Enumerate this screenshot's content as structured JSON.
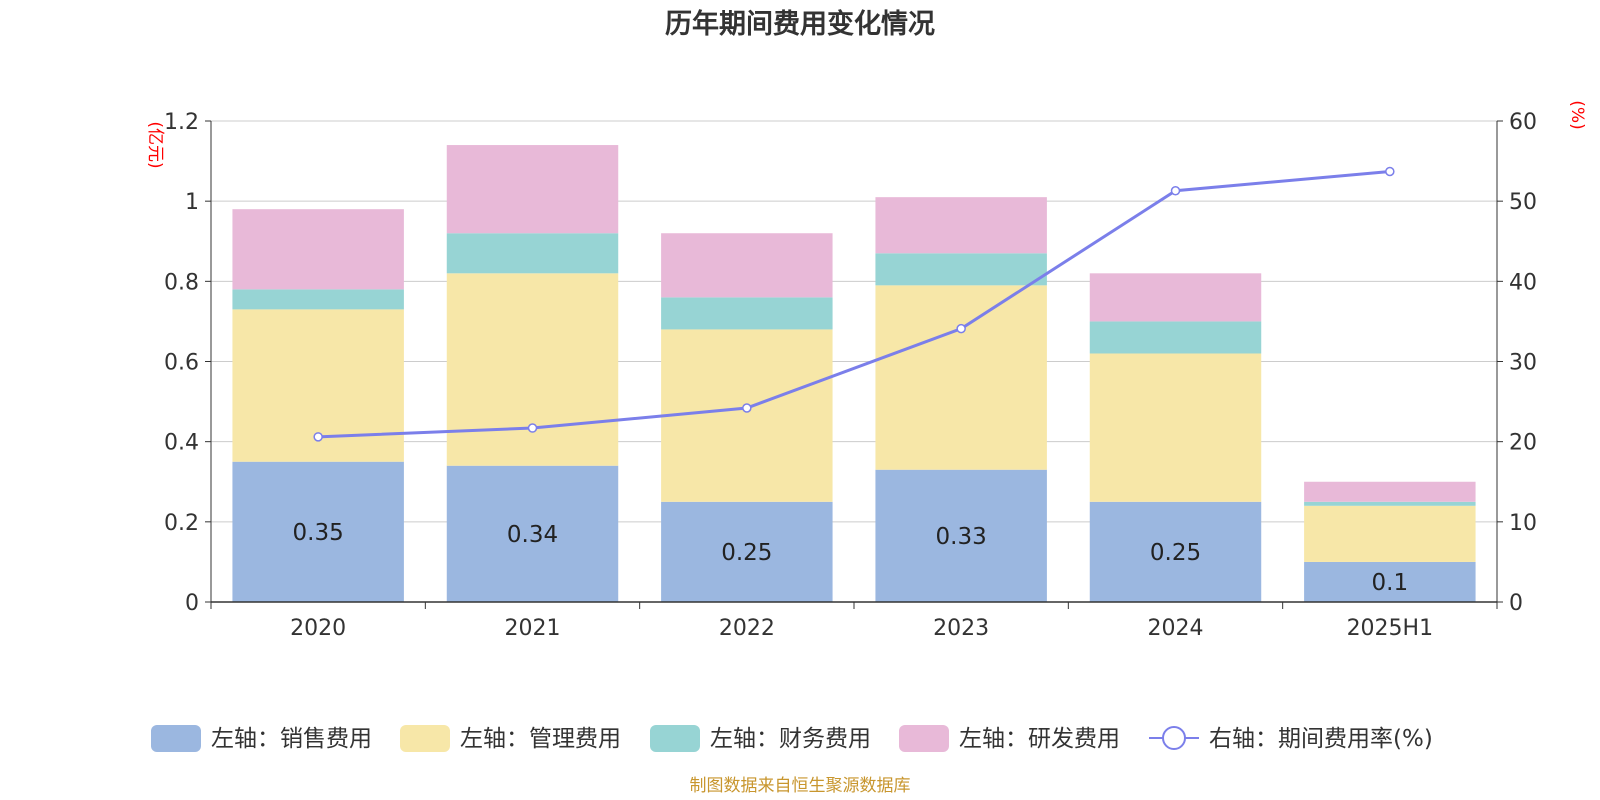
{
  "chart_data": {
    "type": "bar",
    "stacked": true,
    "title": "历年期间费用变化情况",
    "categories": [
      "2020",
      "2021",
      "2022",
      "2023",
      "2024",
      "2025H1"
    ],
    "left_axis": {
      "unit": "(亿元)",
      "ylim": [
        0,
        1.2
      ],
      "ticks": [
        "0",
        "0.2",
        "0.4",
        "0.6",
        "0.8",
        "1",
        "1.2"
      ]
    },
    "right_axis": {
      "unit": "(%)",
      "ylim": [
        0,
        60
      ],
      "ticks": [
        "0",
        "10",
        "20",
        "30",
        "40",
        "50",
        "60"
      ]
    },
    "series": [
      {
        "name": "左轴：销售费用",
        "axis": "left",
        "type": "bar",
        "color": "#9bb7e0",
        "values": [
          0.35,
          0.34,
          0.25,
          0.33,
          0.25,
          0.1
        ],
        "labels": [
          "0.35",
          "0.34",
          "0.25",
          "0.33",
          "0.25",
          "0.1"
        ]
      },
      {
        "name": "左轴：管理费用",
        "axis": "left",
        "type": "bar",
        "color": "#f7e7a8",
        "values": [
          0.38,
          0.48,
          0.43,
          0.46,
          0.37,
          0.14
        ]
      },
      {
        "name": "左轴：财务费用",
        "axis": "left",
        "type": "bar",
        "color": "#97d4d4",
        "values": [
          0.05,
          0.1,
          0.08,
          0.08,
          0.08,
          0.01
        ]
      },
      {
        "name": "左轴：研发费用",
        "axis": "left",
        "type": "bar",
        "color": "#e8b9d8",
        "values": [
          0.2,
          0.22,
          0.16,
          0.14,
          0.12,
          0.05
        ]
      },
      {
        "name": "右轴：期间费用率(%)",
        "axis": "right",
        "type": "line",
        "color": "#7b7fea",
        "values": [
          20.6,
          21.7,
          24.2,
          34.1,
          51.3,
          53.7
        ]
      }
    ],
    "grid": true,
    "legend_position": "bottom",
    "source": "制图数据来自恒生聚源数据库"
  }
}
